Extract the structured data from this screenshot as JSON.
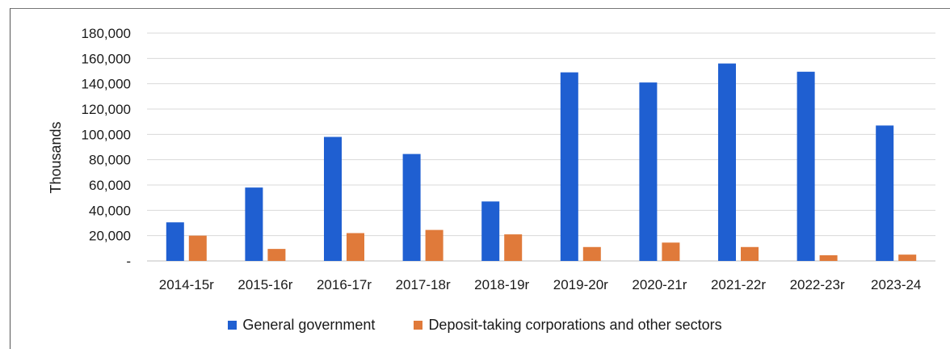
{
  "chart_data": {
    "type": "bar",
    "categories": [
      "2014-15r",
      "2015-16r",
      "2016-17r",
      "2017-18r",
      "2018-19r",
      "2019-20r",
      "2020-21r",
      "2021-22r",
      "2022-23r",
      "2023-24"
    ],
    "series": [
      {
        "name": "General government",
        "color": "#1f5fd1",
        "values": [
          30500,
          58000,
          98000,
          84500,
          47000,
          149000,
          141000,
          156000,
          149500,
          107000
        ]
      },
      {
        "name": "Deposit-taking corporations and other sectors",
        "color": "#e07a3a",
        "values": [
          20000,
          9500,
          22000,
          24500,
          21000,
          11000,
          14500,
          11000,
          4500,
          5000
        ]
      }
    ],
    "ylabel": "Thousands",
    "ylim": [
      0,
      180000
    ],
    "yticks": [
      0,
      20000,
      40000,
      60000,
      80000,
      100000,
      120000,
      140000,
      160000,
      180000
    ],
    "ytick_labels": [
      "-",
      "20,000",
      "40,000",
      "60,000",
      "80,000",
      "100,000",
      "120,000",
      "140,000",
      "160,000",
      "180,000"
    ],
    "grid": true,
    "legend_position": "bottom"
  }
}
